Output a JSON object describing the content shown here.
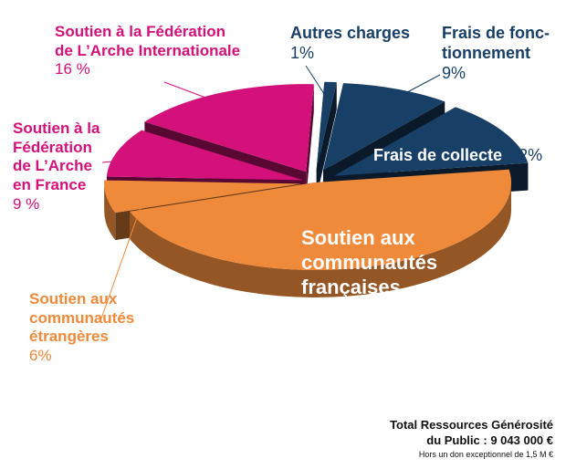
{
  "chart_data": {
    "type": "pie",
    "style": "3d-exploded",
    "slices": [
      {
        "label": "Autres charges",
        "value_label": "1%",
        "value": 1,
        "color": "#183f66"
      },
      {
        "label": "Frais de fonc-\ntionnement",
        "value_label": "9%",
        "value": 9,
        "color": "#183f66"
      },
      {
        "label": "Frais de collecte",
        "value_label": "12%",
        "value": 12,
        "color": "#183f66"
      },
      {
        "label": "Soutien aux\ncommunautés\nfrançaises",
        "value_label": "47%",
        "value": 47,
        "color": "#ef8a3b"
      },
      {
        "label": "Soutien aux\ncommunautés\nétrangères",
        "value_label": "6%",
        "value": 6,
        "color": "#ef8a3b"
      },
      {
        "label": "Soutien à la\nFédération\nde L’Arche\nen France",
        "value_label": "9 %",
        "value": 9,
        "color": "#d4107a"
      },
      {
        "label": "Soutien à la Fédération\nde L’Arche Internationale",
        "value_label": "16 %",
        "value": 16,
        "color": "#d4107a"
      }
    ]
  },
  "footer": {
    "total_line1": "Total Ressources Générosité",
    "total_line2": "du Public : 9 043 000 €",
    "note": "Hors un don exceptionnel de 1,5 M €"
  }
}
